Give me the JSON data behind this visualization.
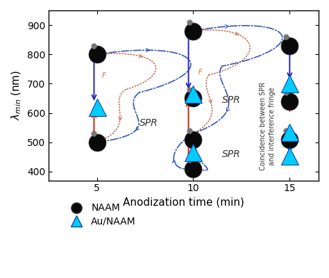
{
  "xlabel": "Anodization time (min)",
  "ylabel": "$\\lambda_{min}$ (nm)",
  "xlim": [
    2.5,
    16.5
  ],
  "ylim": [
    370,
    950
  ],
  "xticks": [
    5,
    10,
    15
  ],
  "yticks": [
    400,
    500,
    600,
    700,
    800,
    900
  ],
  "bg_color": "#ffffff",
  "blue_arrow_color": "#2222bb",
  "red_arrow_color": "#cc2200",
  "green_arrow_color": "#33aa33",
  "red_dot_color": "#cc6644",
  "blue_dd_color": "#3355bb",
  "naam_points": [
    [
      5,
      800
    ],
    [
      5,
      500
    ],
    [
      10,
      880
    ],
    [
      10,
      650
    ],
    [
      10,
      510
    ],
    [
      10,
      410
    ],
    [
      15,
      830
    ],
    [
      15,
      640
    ],
    [
      15,
      510
    ]
  ],
  "au_naam_points": [
    [
      5,
      620
    ],
    [
      10,
      665
    ],
    [
      10,
      465
    ],
    [
      15,
      700
    ],
    [
      15,
      535
    ],
    [
      15,
      455
    ]
  ],
  "spr_labels": [
    [
      7.2,
      565,
      "SPR"
    ],
    [
      11.5,
      645,
      "SPR"
    ],
    [
      11.5,
      458,
      "SPR"
    ]
  ],
  "F_labels": [
    [
      5.25,
      726,
      "F"
    ],
    [
      10.25,
      740,
      "F"
    ]
  ],
  "coincidence_x": 13.85,
  "coincidence_y": 555,
  "legend_naam": "NAAM",
  "legend_au": "Au/NAAM"
}
